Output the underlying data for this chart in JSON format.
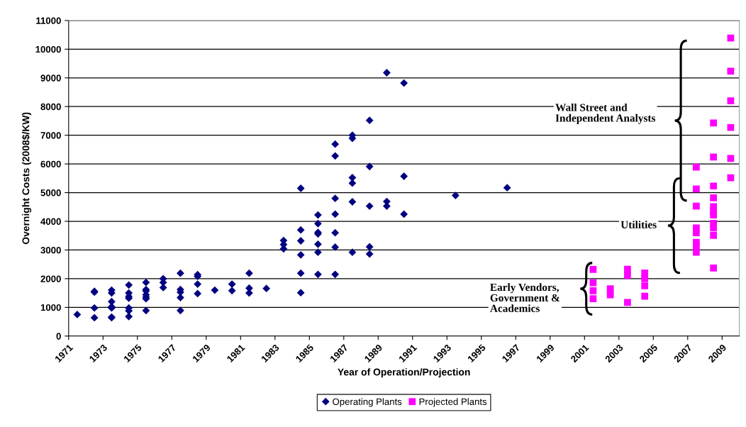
{
  "chart_data": {
    "type": "scatter",
    "xlabel": "Year of Operation/Projection",
    "ylabel": "Overnight Costs (2008$/KW)",
    "xlim": [
      1971,
      2010
    ],
    "xticks": [
      1971,
      1973,
      1975,
      1977,
      1979,
      1981,
      1983,
      1985,
      1987,
      1989,
      1991,
      1993,
      1995,
      1997,
      1999,
      2001,
      2003,
      2005,
      2007,
      2009
    ],
    "ylim": [
      0,
      11000
    ],
    "yticks": [
      0,
      1000,
      2000,
      3000,
      4000,
      5000,
      6000,
      7000,
      8000,
      9000,
      10000,
      11000
    ],
    "grid": "y",
    "legend": "bottom",
    "annotations": [
      "Wall Street and\nIndependent Analysts",
      "Utilities",
      "Early Vendors,\nGovernment &\nAcademics"
    ],
    "series": [
      {
        "name": "Operating Plants",
        "color": "#000080",
        "marker": "diamond",
        "x": [
          1971.5,
          1972.5,
          1972.5,
          1972.5,
          1972.5,
          1973.5,
          1973.5,
          1973.5,
          1973.5,
          1973.5,
          1973.5,
          1973.5,
          1974.5,
          1974.5,
          1974.5,
          1974.5,
          1974.5,
          1974.5,
          1974.5,
          1975.5,
          1975.5,
          1975.5,
          1975.5,
          1975.5,
          1975.5,
          1975.5,
          1976.5,
          1976.5,
          1976.5,
          1977.5,
          1977.5,
          1977.5,
          1977.5,
          1977.5,
          1978.5,
          1978.5,
          1978.5,
          1978.5,
          1979.5,
          1980.5,
          1980.5,
          1981.5,
          1981.5,
          1981.5,
          1982.5,
          1983.5,
          1983.5,
          1983.5,
          1984.5,
          1984.5,
          1984.5,
          1984.5,
          1984.5,
          1984.5,
          1985.5,
          1985.5,
          1985.5,
          1985.5,
          1985.5,
          1985.5,
          1985.5,
          1986.5,
          1986.5,
          1986.5,
          1986.5,
          1986.5,
          1986.5,
          1986.5,
          1987.5,
          1987.5,
          1987.5,
          1987.5,
          1987.5,
          1987.5,
          1988.5,
          1988.5,
          1988.5,
          1988.5,
          1988.5,
          1989.5,
          1989.5,
          1989.5,
          1990.5,
          1990.5,
          1990.5,
          1993.5,
          1996.5
        ],
        "values": [
          750,
          1560,
          1530,
          980,
          640,
          1600,
          1500,
          1200,
          1020,
          980,
          660,
          640,
          1780,
          1500,
          1380,
          1320,
          980,
          880,
          680,
          1870,
          1620,
          1570,
          1440,
          1360,
          1300,
          890,
          2000,
          1870,
          1690,
          2190,
          1620,
          1530,
          1340,
          890,
          2140,
          2080,
          1810,
          1480,
          1600,
          1810,
          1580,
          2190,
          1670,
          1500,
          1660,
          3330,
          3190,
          3040,
          5150,
          3700,
          3320,
          2830,
          2190,
          1510,
          4220,
          3920,
          3610,
          3560,
          3200,
          2920,
          2150,
          6690,
          6280,
          4800,
          4250,
          3600,
          3100,
          2150,
          7000,
          6890,
          5520,
          5330,
          4680,
          2920,
          7520,
          5910,
          4530,
          3110,
          2860,
          9180,
          4690,
          4530,
          8820,
          5570,
          4250,
          4900,
          5170
        ]
      },
      {
        "name": "Projected Plants",
        "color": "#ff00ff",
        "marker": "square",
        "x": [
          2001.5,
          2001.5,
          2001.5,
          2001.5,
          2002.5,
          2002.5,
          2003.5,
          2003.5,
          2003.5,
          2004.5,
          2004.5,
          2004.5,
          2004.5,
          2007.5,
          2007.5,
          2007.5,
          2007.5,
          2007.5,
          2007.5,
          2007.5,
          2007.5,
          2008.5,
          2008.5,
          2008.5,
          2008.5,
          2008.5,
          2008.5,
          2008.5,
          2008.5,
          2008.5,
          2008.5,
          2008.5,
          2009.5,
          2009.5,
          2009.5,
          2009.5,
          2009.5,
          2009.5
        ],
        "values": [
          2320,
          1860,
          1580,
          1300,
          1650,
          1440,
          2330,
          2110,
          1170,
          2200,
          2000,
          1750,
          1390,
          5890,
          5130,
          4530,
          3770,
          3600,
          3270,
          3110,
          2920,
          7430,
          6240,
          5230,
          4820,
          4510,
          4350,
          4220,
          3930,
          3770,
          3510,
          2370,
          10390,
          9230,
          8200,
          7270,
          6190,
          5520
        ]
      }
    ]
  }
}
